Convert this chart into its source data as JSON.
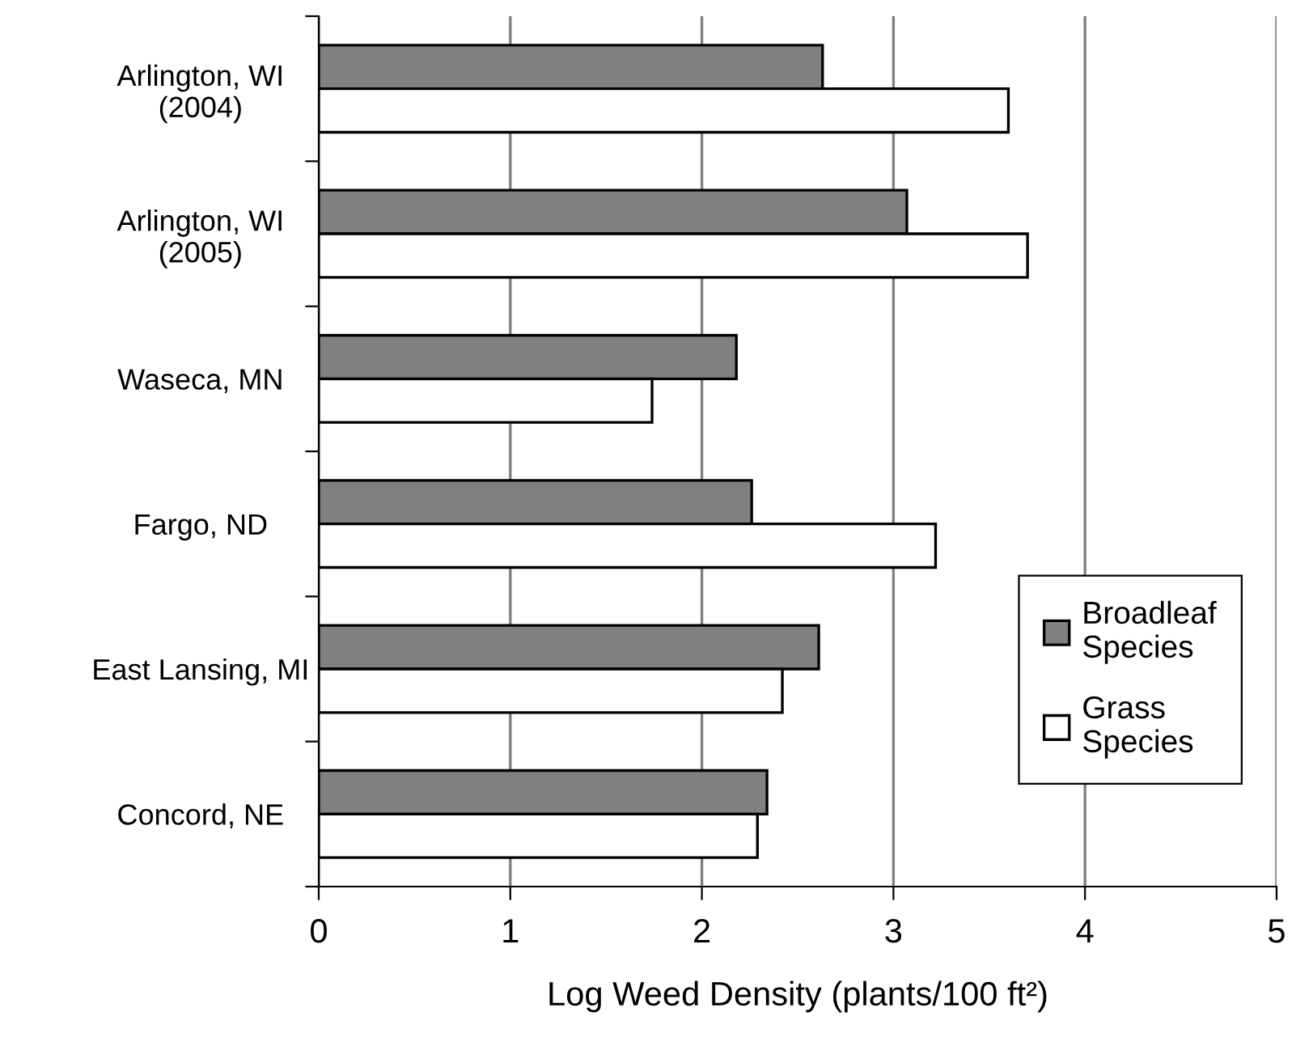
{
  "chart_data": {
    "type": "bar",
    "orientation": "horizontal",
    "xlabel": "Log Weed Density (plants/100 ft²)",
    "categories": [
      "Arlington, WI\n(2004)",
      "Arlington, WI\n(2005)",
      "Waseca, MN",
      "Fargo, ND",
      "East Lansing, MI",
      "Concord, NE"
    ],
    "series": [
      {
        "name": "Broadleaf\nSpecies",
        "color": "#808080",
        "values": [
          2.63,
          3.07,
          2.18,
          2.26,
          2.61,
          2.34
        ]
      },
      {
        "name": "Grass\nSpecies",
        "color": "#ffffff",
        "values": [
          3.6,
          3.7,
          1.74,
          3.22,
          2.42,
          2.29
        ]
      }
    ],
    "xlim": [
      0,
      5
    ],
    "xticks": [
      0,
      1,
      2,
      3,
      4,
      5
    ],
    "grid": "x",
    "legend": "right"
  }
}
